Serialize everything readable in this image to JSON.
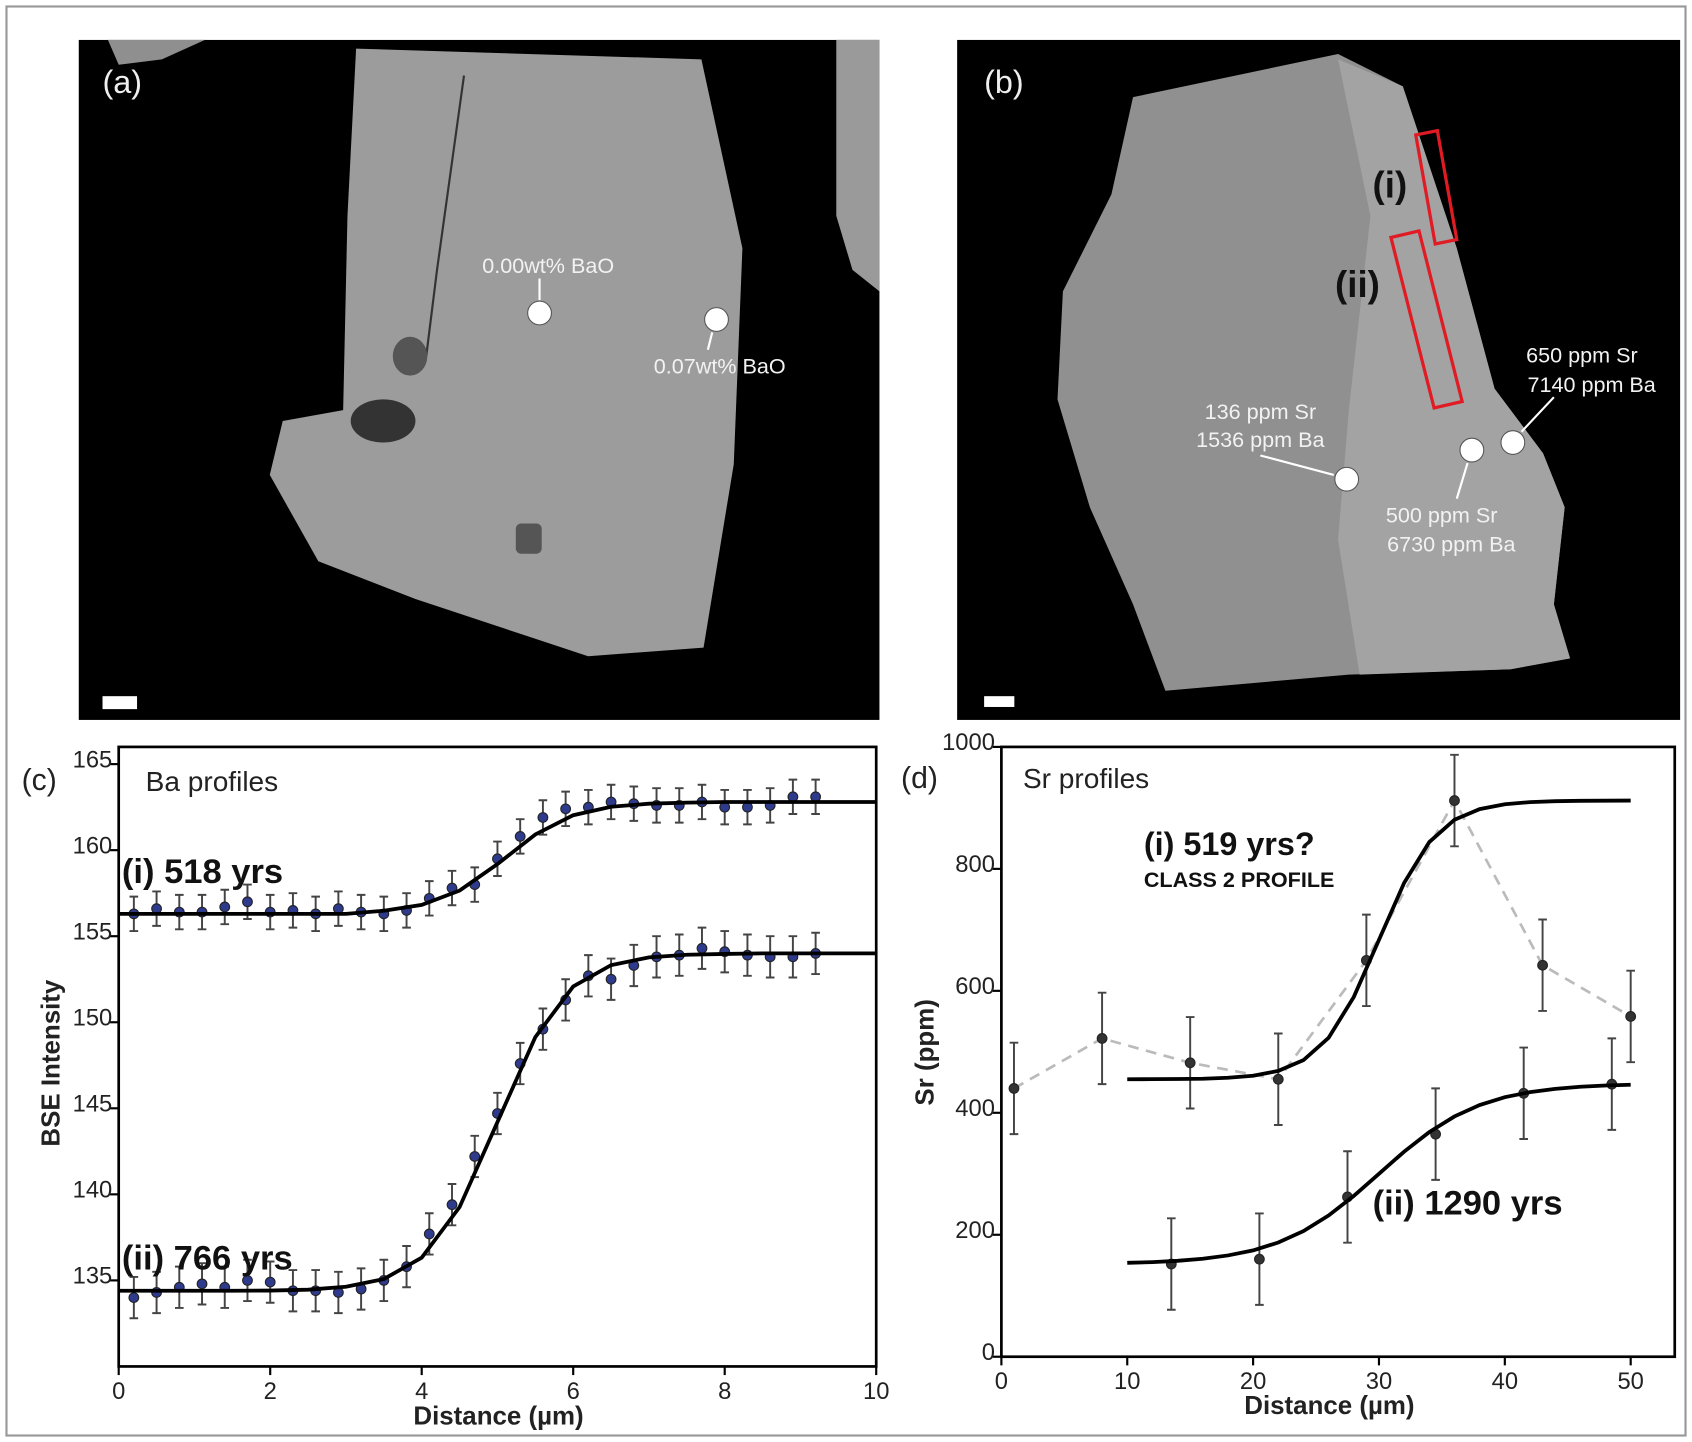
{
  "images": [
    {
      "label": "(a)",
      "annotations": [
        "0.00wt% BaO",
        "0.07wt% BaO"
      ]
    },
    {
      "label": "(b)",
      "annotations": [
        "(i)",
        "(ii)",
        "136 ppm Sr",
        "1536 ppm Ba",
        "500 ppm Sr",
        "6730 ppm Ba",
        "650 ppm Sr",
        "7140 ppm Ba"
      ]
    }
  ],
  "chart_data": [
    {
      "type": "scatter",
      "panel_label": "(c)",
      "title": "Ba profiles",
      "x_label": "Distance (µm)",
      "y_label": "BSE Intensity",
      "annotations": [
        "(i) 518 yrs",
        "(ii) 766 yrs"
      ],
      "xlim": [
        0,
        10
      ],
      "ylim": [
        130,
        166
      ],
      "xticks": [
        0,
        2,
        4,
        6,
        8,
        10
      ],
      "yticks": [
        135,
        140,
        145,
        150,
        155,
        160,
        165
      ],
      "series": [
        {
          "marker": "circle",
          "color": "#2e3a8c",
          "x": [
            0.2,
            0.5,
            0.8,
            1.1,
            1.4,
            1.7,
            2.0,
            2.3,
            2.6,
            2.9,
            3.2,
            3.5,
            3.8,
            4.1,
            4.4,
            4.7,
            5.0,
            5.3,
            5.6,
            5.9,
            6.2,
            6.5,
            6.8,
            7.1,
            7.4,
            7.7,
            8.0,
            8.3,
            8.6,
            8.9,
            9.2
          ],
          "values": [
            156.3,
            156.6,
            156.4,
            156.4,
            156.7,
            157.0,
            156.4,
            156.5,
            156.3,
            156.6,
            156.4,
            156.3,
            156.5,
            157.2,
            157.8,
            158.0,
            159.5,
            160.8,
            161.9,
            162.4,
            162.5,
            162.8,
            162.7,
            162.6,
            162.6,
            162.8,
            162.5,
            162.5,
            162.6,
            163.1,
            163.1
          ],
          "errors": [
            1,
            1,
            1,
            1,
            1,
            1,
            1,
            1,
            1,
            1,
            1,
            1,
            1,
            1,
            1,
            1,
            1,
            1,
            1,
            1,
            1,
            1,
            1,
            1,
            1,
            1,
            1,
            1,
            1,
            1,
            1
          ]
        },
        {
          "marker": "circle",
          "color": "#2e3a8c",
          "x": [
            0.2,
            0.5,
            0.8,
            1.1,
            1.4,
            1.7,
            2.0,
            2.3,
            2.6,
            2.9,
            3.2,
            3.5,
            3.8,
            4.1,
            4.4,
            4.7,
            5.0,
            5.3,
            5.6,
            5.9,
            6.2,
            6.5,
            6.8,
            7.1,
            7.4,
            7.7,
            8.0,
            8.3,
            8.6,
            8.9,
            9.2
          ],
          "values": [
            134.0,
            134.3,
            134.6,
            134.8,
            134.6,
            135.0,
            134.9,
            134.4,
            134.4,
            134.3,
            134.5,
            135.0,
            135.8,
            137.7,
            139.4,
            142.2,
            144.7,
            147.6,
            149.6,
            151.3,
            152.7,
            152.5,
            153.3,
            153.8,
            153.9,
            154.3,
            154.1,
            153.9,
            153.8,
            153.8,
            154.0
          ],
          "errors": [
            1.2,
            1.2,
            1.2,
            1.2,
            1.2,
            1.2,
            1.2,
            1.2,
            1.2,
            1.2,
            1.2,
            1.2,
            1.2,
            1.2,
            1.2,
            1.2,
            1.2,
            1.2,
            1.2,
            1.2,
            1.2,
            1.2,
            1.2,
            1.2,
            1.2,
            1.2,
            1.2,
            1.2,
            1.2,
            1.2,
            1.2
          ]
        },
        {
          "marker": "none",
          "color": "#000000",
          "x": [
            0,
            0.5,
            1,
            1.5,
            2,
            2.5,
            3,
            3.5,
            4,
            4.5,
            5,
            5.5,
            6,
            6.5,
            7,
            7.5,
            8,
            8.5,
            9,
            9.5,
            10
          ],
          "values": [
            156.3,
            156.3,
            156.3,
            156.3,
            156.3,
            156.3,
            156.3,
            156.48,
            156.82,
            157.65,
            159.19,
            160.91,
            162.03,
            162.52,
            162.7,
            162.76,
            162.8,
            162.8,
            162.8,
            162.8,
            162.8
          ]
        },
        {
          "marker": "none",
          "color": "#000000",
          "x": [
            0,
            0.5,
            1,
            1.5,
            2,
            2.5,
            3,
            3.5,
            4,
            4.5,
            5,
            5.5,
            6,
            6.5,
            7,
            7.5,
            8,
            8.5,
            9,
            9.5,
            10
          ],
          "values": [
            134.4,
            134.4,
            134.4,
            134.4,
            134.41,
            134.46,
            134.63,
            135.08,
            136.32,
            139.26,
            144.2,
            149.14,
            152.08,
            153.32,
            153.77,
            153.92,
            153.97,
            154.0,
            154.0,
            154.0,
            154.0
          ]
        }
      ]
    },
    {
      "type": "scatter",
      "panel_label": "(d)",
      "title": "Sr profiles",
      "x_label": "Distance (µm)",
      "y_label": "Sr (ppm)",
      "annotations": [
        "(i) 519 yrs?",
        "CLASS 2 PROFILE",
        "(ii) 1290 yrs"
      ],
      "xlim": [
        0,
        53.5
      ],
      "ylim": [
        0,
        1000
      ],
      "xticks": [
        0,
        10,
        20,
        30,
        40,
        50
      ],
      "yticks": [
        0,
        200,
        400,
        600,
        800,
        1000
      ],
      "series": [
        {
          "marker": "circle",
          "color": "#333333",
          "line_style": "dashed",
          "x": [
            1,
            8,
            15,
            22,
            29,
            36,
            43,
            50
          ],
          "values": [
            440,
            522,
            482,
            455,
            650,
            912,
            642,
            558
          ],
          "errors": [
            75,
            75,
            75,
            75,
            75,
            75,
            75,
            75
          ]
        },
        {
          "marker": "circle",
          "color": "#333333",
          "x": [
            13.5,
            20.5,
            27.5,
            34.5,
            41.5,
            48.5
          ],
          "values": [
            152,
            160,
            262,
            365,
            432,
            447
          ],
          "errors": [
            75,
            75,
            75,
            75,
            75,
            75
          ]
        },
        {
          "marker": "none",
          "color": "#000000",
          "x": [
            10,
            12,
            14,
            16,
            18,
            20,
            22,
            24,
            26,
            28,
            30,
            32,
            34,
            36,
            38,
            40,
            42,
            44,
            46,
            48,
            50
          ],
          "values": [
            455,
            455.2,
            455.4,
            455.9,
            457.5,
            460.8,
            468.7,
            486.3,
            523,
            590,
            683.5,
            777,
            844,
            880.6,
            898,
            906,
            909.5,
            911,
            911.6,
            911.8,
            912
          ]
        },
        {
          "marker": "none",
          "color": "#000000",
          "x": [
            10,
            12,
            14,
            16,
            18,
            20,
            22,
            24,
            26,
            28,
            30,
            32,
            34,
            36,
            38,
            40,
            42,
            44,
            46,
            48,
            50
          ],
          "values": [
            154,
            155.2,
            157.3,
            160.7,
            166.1,
            174.4,
            187.3,
            206,
            231.6,
            263.7,
            300,
            336.3,
            368.4,
            394,
            412.7,
            425.6,
            433.9,
            439.3,
            442.7,
            444.8,
            446
          ]
        }
      ]
    }
  ]
}
